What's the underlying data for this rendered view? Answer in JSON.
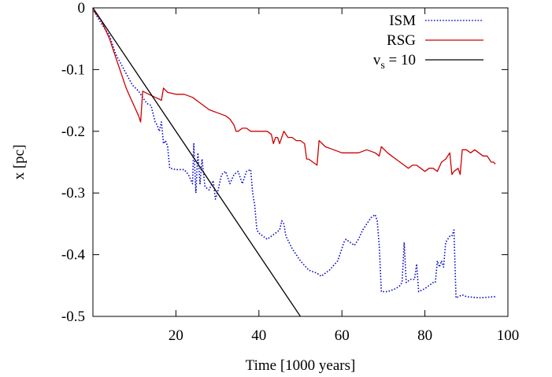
{
  "chart_data": {
    "type": "line",
    "xlabel": "Time [1000 years]",
    "ylabel": "x [pc]",
    "xlim": [
      0,
      100
    ],
    "ylim": [
      -0.5,
      0
    ],
    "x_ticks": [
      20,
      40,
      60,
      80,
      100
    ],
    "y_ticks": [
      0,
      -0.1,
      -0.2,
      -0.3,
      -0.4,
      -0.5
    ],
    "grid": false,
    "legend_position": "top-right",
    "series": [
      {
        "name": "ISM",
        "color": "#0000cc",
        "style": "dotted",
        "points": [
          [
            0.2,
            -0.005
          ],
          [
            2.0,
            -0.025
          ],
          [
            4.0,
            -0.045
          ],
          [
            5.5,
            -0.075
          ],
          [
            7.5,
            -0.1
          ],
          [
            9.5,
            -0.125
          ],
          [
            11.0,
            -0.135
          ],
          [
            12.0,
            -0.145
          ],
          [
            13.0,
            -0.155
          ],
          [
            14.0,
            -0.158
          ],
          [
            15.0,
            -0.185
          ],
          [
            15.5,
            -0.19
          ],
          [
            16.0,
            -0.2
          ],
          [
            16.5,
            -0.185
          ],
          [
            17.0,
            -0.22
          ],
          [
            17.5,
            -0.215
          ],
          [
            18.0,
            -0.225
          ],
          [
            18.5,
            -0.26
          ],
          [
            20.0,
            -0.262
          ],
          [
            22.0,
            -0.262
          ],
          [
            23.0,
            -0.27
          ],
          [
            24.0,
            -0.285
          ],
          [
            24.3,
            -0.22
          ],
          [
            24.8,
            -0.3
          ],
          [
            25.3,
            -0.235
          ],
          [
            25.8,
            -0.285
          ],
          [
            26.3,
            -0.245
          ],
          [
            27.0,
            -0.29
          ],
          [
            28.0,
            -0.295
          ],
          [
            29.0,
            -0.28
          ],
          [
            29.5,
            -0.31
          ],
          [
            30.0,
            -0.3
          ],
          [
            31.0,
            -0.27
          ],
          [
            32.0,
            -0.265
          ],
          [
            33.0,
            -0.285
          ],
          [
            34.0,
            -0.27
          ],
          [
            35.0,
            -0.265
          ],
          [
            36.0,
            -0.285
          ],
          [
            37.0,
            -0.265
          ],
          [
            38.0,
            -0.262
          ],
          [
            38.5,
            -0.3
          ],
          [
            39.0,
            -0.32
          ],
          [
            39.5,
            -0.36
          ],
          [
            40.0,
            -0.365
          ],
          [
            42.0,
            -0.375
          ],
          [
            43.0,
            -0.37
          ],
          [
            44.0,
            -0.365
          ],
          [
            45.0,
            -0.36
          ],
          [
            45.5,
            -0.345
          ],
          [
            46.0,
            -0.35
          ],
          [
            46.5,
            -0.37
          ],
          [
            48.0,
            -0.39
          ],
          [
            50.0,
            -0.41
          ],
          [
            52.0,
            -0.425
          ],
          [
            54.0,
            -0.43
          ],
          [
            55.0,
            -0.435
          ],
          [
            57.0,
            -0.425
          ],
          [
            59.0,
            -0.41
          ],
          [
            60.0,
            -0.39
          ],
          [
            60.5,
            -0.38
          ],
          [
            61.0,
            -0.375
          ],
          [
            62.0,
            -0.38
          ],
          [
            63.0,
            -0.385
          ],
          [
            64.0,
            -0.375
          ],
          [
            65.0,
            -0.36
          ],
          [
            66.0,
            -0.35
          ],
          [
            67.0,
            -0.34
          ],
          [
            68.0,
            -0.335
          ],
          [
            68.5,
            -0.345
          ],
          [
            69.0,
            -0.385
          ],
          [
            69.5,
            -0.46
          ],
          [
            71.0,
            -0.46
          ],
          [
            73.0,
            -0.455
          ],
          [
            74.0,
            -0.45
          ],
          [
            74.5,
            -0.445
          ],
          [
            75.0,
            -0.38
          ],
          [
            75.5,
            -0.445
          ],
          [
            76.5,
            -0.44
          ],
          [
            77.5,
            -0.44
          ],
          [
            78.0,
            -0.415
          ],
          [
            78.5,
            -0.46
          ],
          [
            80.0,
            -0.455
          ],
          [
            81.0,
            -0.45
          ],
          [
            82.0,
            -0.445
          ],
          [
            82.5,
            -0.445
          ],
          [
            83.0,
            -0.41
          ],
          [
            83.5,
            -0.42
          ],
          [
            84.0,
            -0.41
          ],
          [
            84.5,
            -0.42
          ],
          [
            85.0,
            -0.38
          ],
          [
            86.0,
            -0.37
          ],
          [
            86.5,
            -0.37
          ],
          [
            87.0,
            -0.36
          ],
          [
            87.5,
            -0.47
          ],
          [
            89.0,
            -0.465
          ],
          [
            90.0,
            -0.468
          ],
          [
            93.0,
            -0.47
          ],
          [
            97.0,
            -0.468
          ]
        ]
      },
      {
        "name": "RSG",
        "color": "#cc0000",
        "style": "solid",
        "points": [
          [
            0.2,
            -0.005
          ],
          [
            2.0,
            -0.02
          ],
          [
            4.0,
            -0.05
          ],
          [
            5.0,
            -0.07
          ],
          [
            6.0,
            -0.09
          ],
          [
            7.0,
            -0.11
          ],
          [
            8.0,
            -0.13
          ],
          [
            9.0,
            -0.145
          ],
          [
            10.0,
            -0.16
          ],
          [
            11.0,
            -0.175
          ],
          [
            11.5,
            -0.185
          ],
          [
            12.0,
            -0.135
          ],
          [
            13.5,
            -0.14
          ],
          [
            15.0,
            -0.145
          ],
          [
            16.0,
            -0.148
          ],
          [
            16.5,
            -0.15
          ],
          [
            17.0,
            -0.13
          ],
          [
            18.0,
            -0.137
          ],
          [
            20.0,
            -0.14
          ],
          [
            22.0,
            -0.14
          ],
          [
            24.0,
            -0.145
          ],
          [
            26.0,
            -0.155
          ],
          [
            28.0,
            -0.165
          ],
          [
            30.0,
            -0.17
          ],
          [
            32.0,
            -0.175
          ],
          [
            33.0,
            -0.18
          ],
          [
            34.0,
            -0.19
          ],
          [
            34.5,
            -0.2
          ],
          [
            35.0,
            -0.2
          ],
          [
            36.0,
            -0.195
          ],
          [
            37.0,
            -0.195
          ],
          [
            38.0,
            -0.2
          ],
          [
            40.0,
            -0.2
          ],
          [
            42.0,
            -0.2
          ],
          [
            43.0,
            -0.205
          ],
          [
            43.5,
            -0.22
          ],
          [
            44.0,
            -0.21
          ],
          [
            44.5,
            -0.21
          ],
          [
            45.0,
            -0.22
          ],
          [
            46.0,
            -0.2
          ],
          [
            47.0,
            -0.21
          ],
          [
            48.0,
            -0.21
          ],
          [
            49.0,
            -0.215
          ],
          [
            50.0,
            -0.215
          ],
          [
            51.0,
            -0.22
          ],
          [
            51.5,
            -0.245
          ],
          [
            52.0,
            -0.245
          ],
          [
            53.0,
            -0.25
          ],
          [
            54.0,
            -0.255
          ],
          [
            54.5,
            -0.215
          ],
          [
            56.0,
            -0.225
          ],
          [
            58.0,
            -0.23
          ],
          [
            60.0,
            -0.235
          ],
          [
            62.0,
            -0.235
          ],
          [
            64.0,
            -0.235
          ],
          [
            66.0,
            -0.23
          ],
          [
            68.0,
            -0.235
          ],
          [
            69.0,
            -0.24
          ],
          [
            69.5,
            -0.225
          ],
          [
            71.0,
            -0.235
          ],
          [
            72.0,
            -0.24
          ],
          [
            73.0,
            -0.245
          ],
          [
            74.0,
            -0.25
          ],
          [
            75.0,
            -0.255
          ],
          [
            76.0,
            -0.26
          ],
          [
            77.0,
            -0.255
          ],
          [
            78.0,
            -0.255
          ],
          [
            79.0,
            -0.26
          ],
          [
            80.0,
            -0.265
          ],
          [
            81.0,
            -0.26
          ],
          [
            82.0,
            -0.26
          ],
          [
            83.0,
            -0.265
          ],
          [
            84.0,
            -0.25
          ],
          [
            85.0,
            -0.245
          ],
          [
            86.0,
            -0.235
          ],
          [
            86.5,
            -0.27
          ],
          [
            87.0,
            -0.265
          ],
          [
            88.0,
            -0.26
          ],
          [
            88.5,
            -0.27
          ],
          [
            89.0,
            -0.23
          ],
          [
            90.0,
            -0.23
          ],
          [
            91.0,
            -0.235
          ],
          [
            92.0,
            -0.23
          ],
          [
            93.0,
            -0.235
          ],
          [
            94.0,
            -0.24
          ],
          [
            95.0,
            -0.24
          ],
          [
            96.0,
            -0.25
          ],
          [
            96.5,
            -0.25
          ],
          [
            97.0,
            -0.253
          ]
        ]
      },
      {
        "label_main": "v",
        "label_sub": "s",
        "label_rest": " = 10",
        "color": "#000000",
        "style": "solid",
        "points": [
          [
            0,
            0
          ],
          [
            50,
            -0.5
          ]
        ]
      }
    ]
  }
}
